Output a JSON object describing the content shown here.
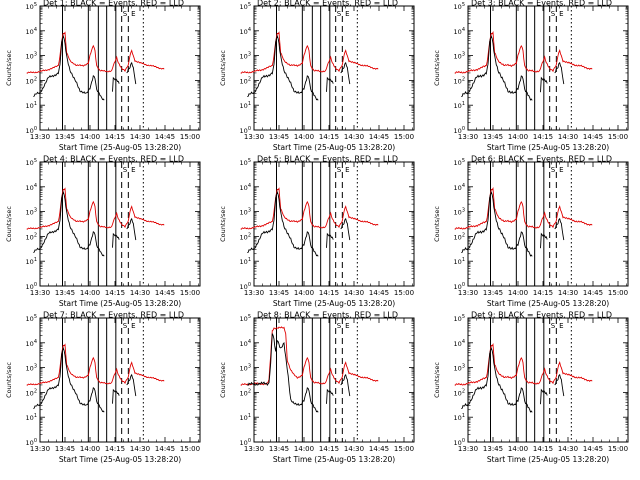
{
  "figure": {
    "panel_xlabel": "Start Time (25-Aug-05 13:28:20)",
    "panel_ylabel": "Counts/sec"
  },
  "chart_data": [
    {
      "type": "line",
      "title": "Det 1: BLACK = Events, RED = LLD",
      "xlabel": "Start Time (25-Aug-05 13:28:20)",
      "ylabel": "Counts/sec",
      "yscale": "log",
      "xlim": [
        "13:30",
        "15:06"
      ],
      "ylim": [
        1,
        100000
      ],
      "xticks": [
        "13:30",
        "13:45",
        "14:00",
        "14:15",
        "14:30",
        "14:45",
        "15:00"
      ],
      "yticks": [
        "10^0",
        "10^1",
        "10^2",
        "10^3",
        "10^4",
        "10^5"
      ],
      "markers": [
        "S",
        "E"
      ],
      "colors": {
        "events": "#000000",
        "lld": "#e00000"
      },
      "profile": "normal",
      "series": [
        {
          "name": "BLACK = Events"
        },
        {
          "name": "RED = LLD"
        }
      ]
    },
    {
      "type": "line",
      "title": "Det 2: BLACK = Events, RED = LLD",
      "xlabel": "Start Time (25-Aug-05 13:28:20)",
      "ylabel": "Counts/sec",
      "yscale": "log",
      "xlim": [
        "13:30",
        "15:06"
      ],
      "ylim": [
        1,
        100000
      ],
      "xticks": [
        "13:30",
        "13:45",
        "14:00",
        "14:15",
        "14:30",
        "14:45",
        "15:00"
      ],
      "yticks": [
        "10^0",
        "10^1",
        "10^2",
        "10^3",
        "10^4",
        "10^5"
      ],
      "markers": [
        "S",
        "E"
      ],
      "colors": {
        "events": "#000000",
        "lld": "#e00000"
      },
      "profile": "normal",
      "series": [
        {
          "name": "BLACK = Events"
        },
        {
          "name": "RED = LLD"
        }
      ]
    },
    {
      "type": "line",
      "title": "Det 3: BLACK = Events, RED = LLD",
      "xlabel": "Start Time (25-Aug-05 13:28:20)",
      "ylabel": "Counts/sec",
      "yscale": "log",
      "xlim": [
        "13:30",
        "15:06"
      ],
      "ylim": [
        1,
        100000
      ],
      "xticks": [
        "13:30",
        "13:45",
        "14:00",
        "14:15",
        "14:30",
        "14:45",
        "15:00"
      ],
      "yticks": [
        "10^0",
        "10^1",
        "10^2",
        "10^3",
        "10^4",
        "10^5"
      ],
      "markers": [
        "S",
        "E"
      ],
      "colors": {
        "events": "#000000",
        "lld": "#e00000"
      },
      "profile": "normal",
      "series": [
        {
          "name": "BLACK = Events"
        },
        {
          "name": "RED = LLD"
        }
      ]
    },
    {
      "type": "line",
      "title": "Det 4: BLACK = Events, RED = LLD",
      "xlabel": "Start Time (25-Aug-05 13:28:20)",
      "ylabel": "Counts/sec",
      "yscale": "log",
      "xlim": [
        "13:30",
        "15:06"
      ],
      "ylim": [
        1,
        100000
      ],
      "xticks": [
        "13:30",
        "13:45",
        "14:00",
        "14:15",
        "14:30",
        "14:45",
        "15:00"
      ],
      "yticks": [
        "10^0",
        "10^1",
        "10^2",
        "10^3",
        "10^4",
        "10^5"
      ],
      "markers": [
        "S",
        "E"
      ],
      "colors": {
        "events": "#000000",
        "lld": "#e00000"
      },
      "profile": "normal",
      "series": [
        {
          "name": "BLACK = Events"
        },
        {
          "name": "RED = LLD"
        }
      ]
    },
    {
      "type": "line",
      "title": "Det 5: BLACK = Events, RED = LLD",
      "xlabel": "Start Time (25-Aug-05 13:28:20)",
      "ylabel": "Counts/sec",
      "yscale": "log",
      "xlim": [
        "13:30",
        "15:06"
      ],
      "ylim": [
        1,
        100000
      ],
      "xticks": [
        "13:30",
        "13:45",
        "14:00",
        "14:15",
        "14:30",
        "14:45",
        "15:00"
      ],
      "yticks": [
        "10^0",
        "10^1",
        "10^2",
        "10^3",
        "10^4",
        "10^5"
      ],
      "markers": [
        "S",
        "E"
      ],
      "colors": {
        "events": "#000000",
        "lld": "#e00000"
      },
      "profile": "normal",
      "series": [
        {
          "name": "BLACK = Events"
        },
        {
          "name": "RED = LLD"
        }
      ]
    },
    {
      "type": "line",
      "title": "Det 6: BLACK = Events, RED = LLD",
      "xlabel": "Start Time (25-Aug-05 13:28:20)",
      "ylabel": "Counts/sec",
      "yscale": "log",
      "xlim": [
        "13:30",
        "15:06"
      ],
      "ylim": [
        1,
        100000
      ],
      "xticks": [
        "13:30",
        "13:45",
        "14:00",
        "14:15",
        "14:30",
        "14:45",
        "15:00"
      ],
      "yticks": [
        "10^0",
        "10^1",
        "10^2",
        "10^3",
        "10^4",
        "10^5"
      ],
      "markers": [
        "S",
        "E"
      ],
      "colors": {
        "events": "#000000",
        "lld": "#e00000"
      },
      "profile": "normal",
      "series": [
        {
          "name": "BLACK = Events"
        },
        {
          "name": "RED = LLD"
        }
      ]
    },
    {
      "type": "line",
      "title": "Det 7: BLACK = Events, RED = LLD",
      "xlabel": "Start Time (25-Aug-05 13:28:20)",
      "ylabel": "Counts/sec",
      "yscale": "log",
      "xlim": [
        "13:30",
        "15:06"
      ],
      "ylim": [
        1,
        100000
      ],
      "xticks": [
        "13:30",
        "13:45",
        "14:00",
        "14:15",
        "14:30",
        "14:45",
        "15:00"
      ],
      "yticks": [
        "10^0",
        "10^1",
        "10^2",
        "10^3",
        "10^4",
        "10^5"
      ],
      "markers": [
        "S",
        "E"
      ],
      "colors": {
        "events": "#000000",
        "lld": "#e00000"
      },
      "profile": "normal",
      "series": [
        {
          "name": "BLACK = Events"
        },
        {
          "name": "RED = LLD"
        }
      ]
    },
    {
      "type": "line",
      "title": "Det 8: BLACK = Events, RED = LLD",
      "xlabel": "Start Time (25-Aug-05 13:28:20)",
      "ylabel": "Counts/sec",
      "yscale": "log",
      "xlim": [
        "13:30",
        "15:06"
      ],
      "ylim": [
        1,
        100000
      ],
      "xticks": [
        "13:30",
        "13:45",
        "14:00",
        "14:15",
        "14:30",
        "14:45",
        "15:00"
      ],
      "yticks": [
        "10^0",
        "10^1",
        "10^2",
        "10^3",
        "10^4",
        "10^5"
      ],
      "markers": [
        "S",
        "E"
      ],
      "colors": {
        "events": "#000000",
        "lld": "#e00000"
      },
      "profile": "saturated",
      "series": [
        {
          "name": "BLACK = Events"
        },
        {
          "name": "RED = LLD"
        }
      ]
    },
    {
      "type": "line",
      "title": "Det 9: BLACK = Events, RED = LLD",
      "xlabel": "Start Time (25-Aug-05 13:28:20)",
      "ylabel": "Counts/sec",
      "yscale": "log",
      "xlim": [
        "13:30",
        "15:06"
      ],
      "ylim": [
        1,
        100000
      ],
      "xticks": [
        "13:30",
        "13:45",
        "14:00",
        "14:15",
        "14:30",
        "14:45",
        "15:00"
      ],
      "yticks": [
        "10^0",
        "10^1",
        "10^2",
        "10^3",
        "10^4",
        "10^5"
      ],
      "markers": [
        "S",
        "E"
      ],
      "colors": {
        "events": "#000000",
        "lld": "#e00000"
      },
      "profile": "normal",
      "series": [
        {
          "name": "BLACK = Events"
        },
        {
          "name": "RED = LLD"
        }
      ]
    }
  ]
}
